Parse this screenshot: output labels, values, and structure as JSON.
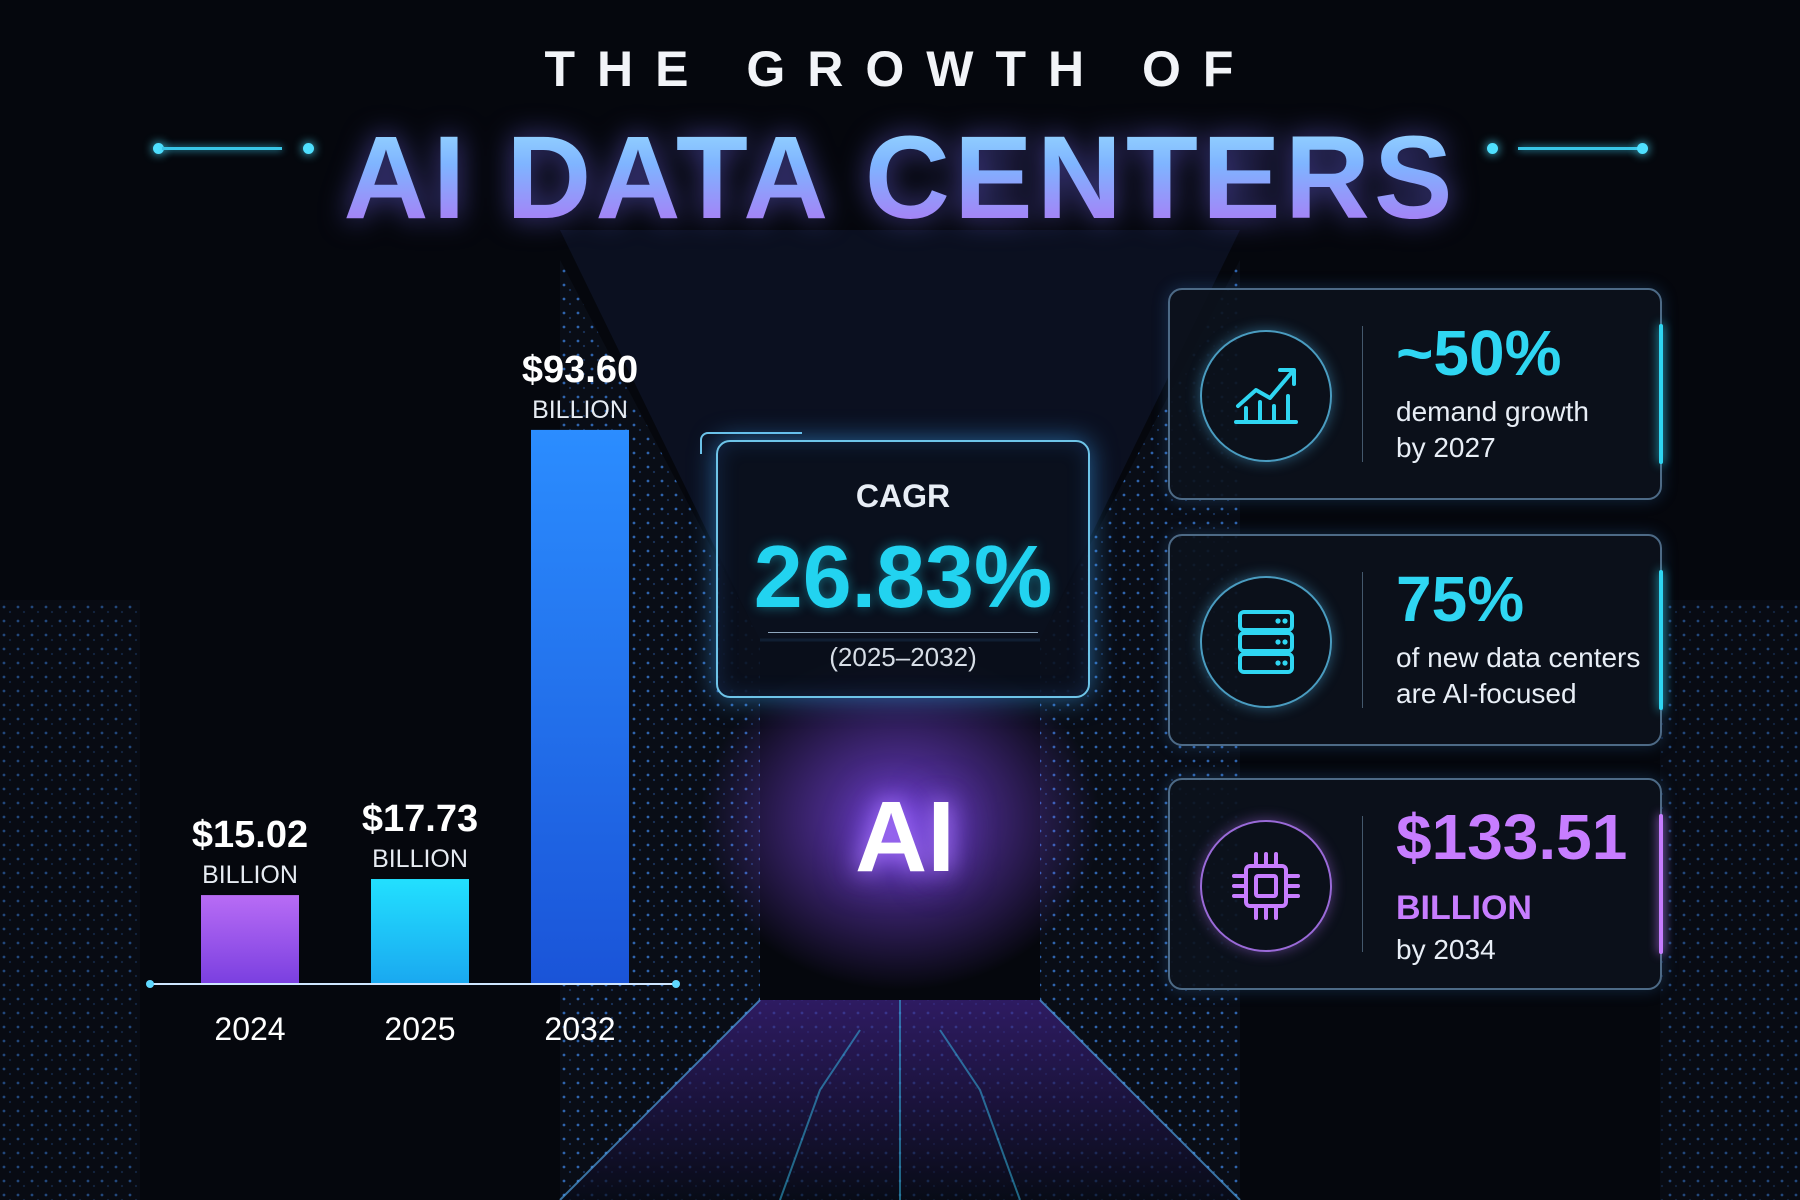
{
  "header": {
    "title_top": "THE GROWTH OF",
    "title_main": "AI DATA CENTERS"
  },
  "chart_data": {
    "type": "bar",
    "categories": [
      "2024",
      "2025",
      "2032"
    ],
    "values": [
      15.02,
      17.73,
      93.6
    ],
    "value_labels": [
      "$15.02",
      "$17.73",
      "$93.60"
    ],
    "unit_label": "BILLION",
    "ylim": [
      0,
      100
    ],
    "grid": false,
    "title": "",
    "xlabel": "",
    "ylabel": "",
    "colors": [
      [
        "#b86cf5",
        "#7a3fe0"
      ],
      [
        "#22e0ff",
        "#1aa8f0"
      ],
      [
        "#2b8dff",
        "#1a54d8"
      ]
    ]
  },
  "cagr": {
    "label": "CAGR",
    "value": "26.83%",
    "range": "(2025–2032)"
  },
  "center_text": "AI",
  "stats": [
    {
      "icon": "growth-chart-icon",
      "big": "~50%",
      "line1": "demand growth",
      "line2": "by 2027",
      "color": "#2fd6f2"
    },
    {
      "icon": "server-icon",
      "big": "75%",
      "line1": "of new data centers",
      "line2": "are AI-focused",
      "color": "#2fd6f2"
    },
    {
      "icon": "chip-icon",
      "big": "$133.51",
      "line1": "BILLION",
      "line2": "by 2034",
      "color": "#c77dff"
    }
  ]
}
